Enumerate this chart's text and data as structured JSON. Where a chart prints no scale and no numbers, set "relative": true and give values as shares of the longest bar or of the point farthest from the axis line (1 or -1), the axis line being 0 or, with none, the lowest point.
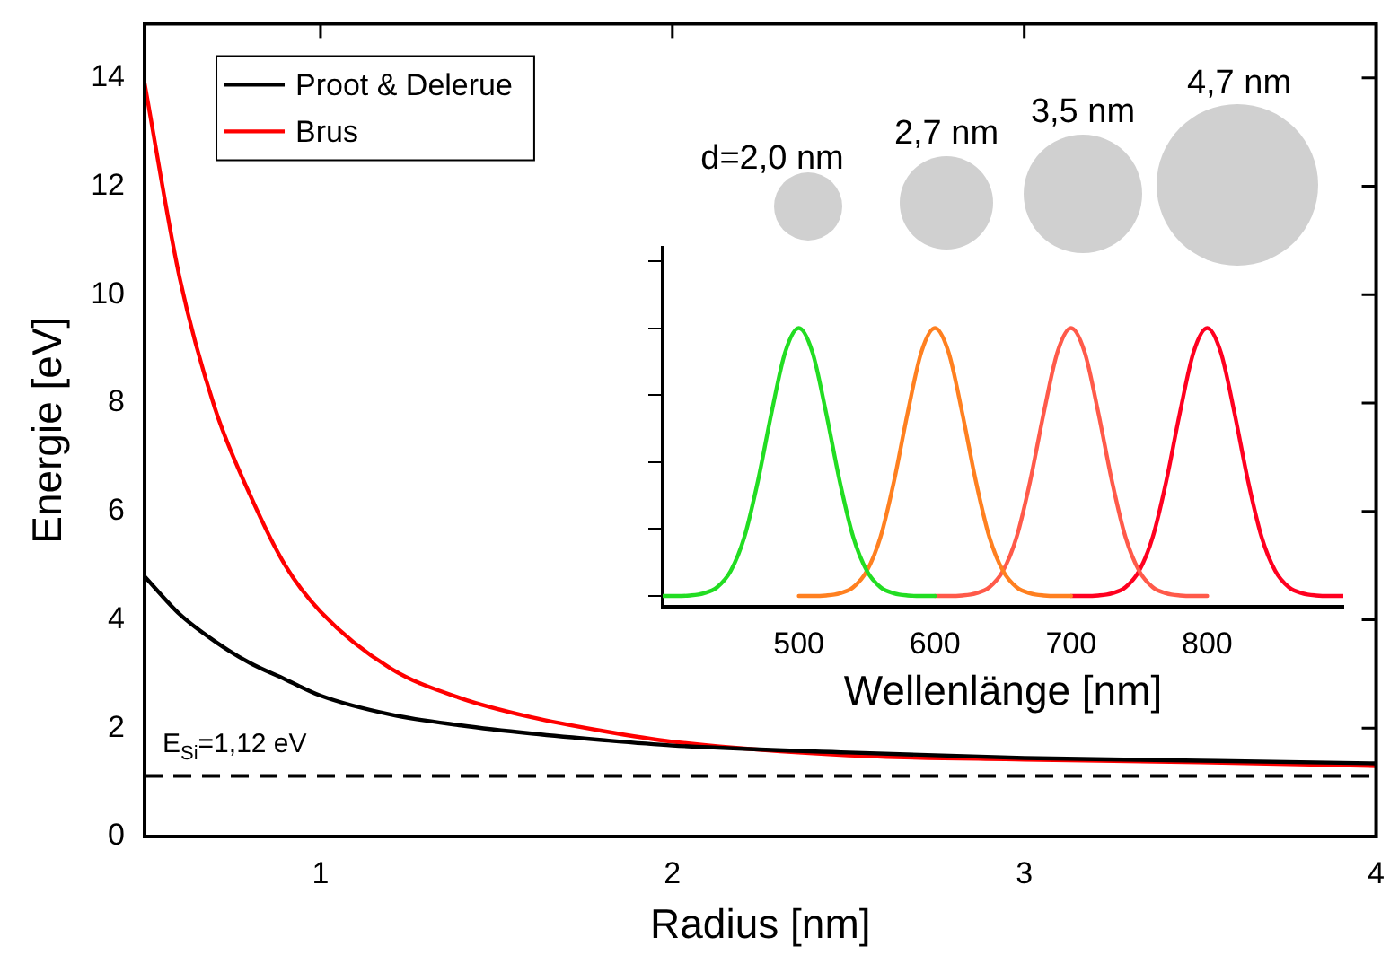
{
  "chart_data": [
    {
      "type": "line",
      "xlabel": "Radius [nm]",
      "ylabel": "Energie [eV]",
      "x": [
        0.5,
        0.6,
        0.7,
        0.8,
        0.9,
        1.0,
        1.2,
        1.4,
        1.6,
        1.8,
        2.0,
        2.5,
        3.0,
        3.5,
        4.0
      ],
      "series": [
        {
          "name": "Proot & Delerue",
          "color": "#000000",
          "values": [
            4.8,
            4.1,
            3.6,
            3.2,
            2.9,
            2.6,
            2.25,
            2.05,
            1.9,
            1.78,
            1.68,
            1.55,
            1.45,
            1.4,
            1.35
          ]
        },
        {
          "name": "Brus",
          "color": "#ff0000",
          "values": [
            13.9,
            10.3,
            7.9,
            6.3,
            5.0,
            4.15,
            3.1,
            2.55,
            2.2,
            1.95,
            1.75,
            1.5,
            1.42,
            1.37,
            1.3
          ]
        }
      ],
      "xlim": [
        0.5,
        4
      ],
      "xticks": [
        1,
        2,
        3,
        4
      ],
      "ylim": [
        0,
        15
      ],
      "yticks": [
        0,
        2,
        4,
        6,
        8,
        10,
        12,
        14
      ],
      "ref_lines": [
        {
          "axis": "y",
          "value": 1.12,
          "label": "E$_{Si}$=1,12 eV",
          "color": "#000000",
          "line_style": "dashed"
        }
      ],
      "legend": "top left",
      "grid": false,
      "marker": "none",
      "line_style": "solid"
    },
    {
      "type": "line",
      "xlabel": "Wellenlänge [nm]",
      "relative": true,
      "tick_labels": "x",
      "annotations": [
        "d=2,0 nm",
        "2,7 nm",
        "3,5 nm",
        "4,7 nm"
      ],
      "series": [
        {
          "color": "#22dd22",
          "x": [
            400,
            410,
            420,
            430,
            440,
            450,
            460,
            470,
            480,
            490,
            500,
            510,
            520,
            530,
            540,
            550,
            560,
            570,
            580,
            590,
            600
          ],
          "values": [
            0,
            0,
            0.002,
            0.01,
            0.033,
            0.094,
            0.22,
            0.43,
            0.685,
            0.91,
            1,
            0.91,
            0.685,
            0.43,
            0.22,
            0.094,
            0.033,
            0.01,
            0.002,
            0,
            0
          ]
        },
        {
          "color": "#ff8020",
          "x": [
            500,
            510,
            520,
            530,
            540,
            550,
            560,
            570,
            580,
            590,
            600,
            610,
            620,
            630,
            640,
            650,
            660,
            670,
            680,
            690,
            700
          ],
          "values": [
            0,
            0,
            0.002,
            0.01,
            0.033,
            0.094,
            0.22,
            0.43,
            0.685,
            0.91,
            1,
            0.91,
            0.685,
            0.43,
            0.22,
            0.094,
            0.033,
            0.01,
            0.002,
            0,
            0
          ]
        },
        {
          "color": "#ff5a4a",
          "x": [
            600,
            610,
            620,
            630,
            640,
            650,
            660,
            670,
            680,
            690,
            700,
            710,
            720,
            730,
            740,
            750,
            760,
            770,
            780,
            790,
            800
          ],
          "values": [
            0,
            0,
            0.002,
            0.01,
            0.033,
            0.094,
            0.22,
            0.43,
            0.685,
            0.91,
            1,
            0.91,
            0.685,
            0.43,
            0.22,
            0.094,
            0.033,
            0.01,
            0.002,
            0,
            0
          ]
        },
        {
          "color": "#ff0020",
          "x": [
            700,
            710,
            720,
            730,
            740,
            750,
            760,
            770,
            780,
            790,
            800,
            810,
            820,
            830,
            840,
            850,
            860,
            870,
            880,
            890,
            900
          ],
          "values": [
            0,
            0,
            0.002,
            0.01,
            0.033,
            0.094,
            0.22,
            0.43,
            0.685,
            0.91,
            1,
            0.91,
            0.685,
            0.43,
            0.22,
            0.094,
            0.033,
            0.01,
            0.002,
            0,
            0
          ]
        }
      ],
      "xlim": [
        400,
        900
      ],
      "xticks": [
        500,
        600,
        700,
        800
      ],
      "marker": "none",
      "line_style": "solid"
    }
  ]
}
